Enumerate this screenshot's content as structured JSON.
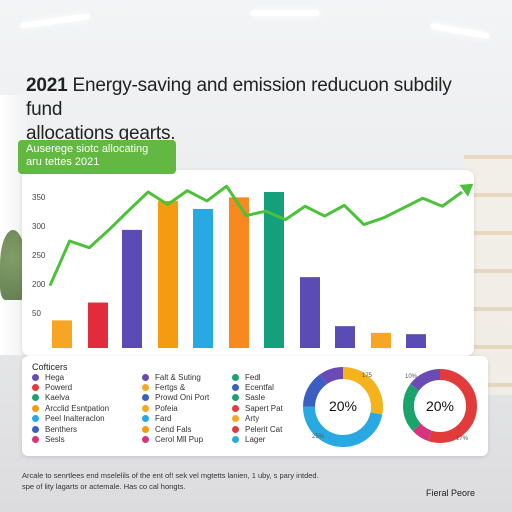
{
  "title": {
    "year": "2021",
    "rest_line1": " Energy-saving and emission reducuon subdily fund",
    "line2": "allocations gearts."
  },
  "tag": {
    "line1": "Auserege siotc allocating",
    "line2": "aru tettes 2021"
  },
  "chart_data": {
    "type": "bar",
    "y_ticks": [
      "350",
      "300",
      "250",
      "200",
      "50"
    ],
    "ylim": [
      0,
      350
    ],
    "values": [
      62,
      102,
      265,
      330,
      312,
      338,
      350,
      159,
      49,
      34,
      31
    ],
    "series": [
      {
        "type": "line",
        "values": [
          140,
          240,
          225,
          265,
          308,
          350,
          322,
          353,
          330,
          363,
          297,
          307,
          288,
          318,
          296,
          320,
          277,
          292,
          314,
          336,
          318,
          350
        ]
      }
    ],
    "colors": [
      "#f6a623",
      "#e02c3c",
      "#5b4bb5",
      "#f39c12",
      "#29a9e1",
      "#f7891f",
      "#13a07a",
      "#5b4bb5",
      "#5b4bb5",
      "#f6a623",
      "#5b4bb5"
    ],
    "line_color": "#4cc13a",
    "grid": false
  },
  "legend": {
    "heading": "Cofticers",
    "columns": [
      [
        {
          "label": "Hega",
          "color": "#6a4bb5"
        },
        {
          "label": "Powerd",
          "color": "#e23b3b"
        },
        {
          "label": "Kaelva",
          "color": "#1aa36b"
        },
        {
          "label": "Arcclid Esntpation",
          "color": "#f39c12"
        },
        {
          "label": "Peel Inalteraclon",
          "color": "#29a9e1"
        },
        {
          "label": "Benthers",
          "color": "#3b5fc0"
        },
        {
          "label": "Sesls",
          "color": "#d4357e"
        }
      ],
      [
        {
          "label": "Falt & Suting",
          "color": "#6a4bb5"
        },
        {
          "label": "Fertgs &",
          "color": "#f6a623"
        },
        {
          "label": "Prowd Oni Port",
          "color": "#3b5fc0"
        },
        {
          "label": "Pofeia",
          "color": "#f6a623"
        },
        {
          "label": "Fard",
          "color": "#29a9e1"
        },
        {
          "label": "Cend Fals",
          "color": "#f39c12"
        },
        {
          "label": "Cerol Mll Pup",
          "color": "#d4357e"
        }
      ],
      [
        {
          "label": "Fedl",
          "color": "#1aa36b"
        },
        {
          "label": "Ecentfal",
          "color": "#3b5fc0"
        },
        {
          "label": "Sasle",
          "color": "#1aa36b"
        },
        {
          "label": "Sapert Pat",
          "color": "#e23b3b"
        },
        {
          "label": "Arty",
          "color": "#f6a623"
        },
        {
          "label": "Pelerit Cat",
          "color": "#e23b3b"
        },
        {
          "label": "Lager",
          "color": "#29a9e1"
        }
      ]
    ]
  },
  "donuts": [
    {
      "center": "20%",
      "note_top": "175",
      "note_bottom": "25%",
      "segments": [
        {
          "value": 28,
          "color": "#f6b21b"
        },
        {
          "value": 47,
          "color": "#29a9e1"
        },
        {
          "value": 15,
          "color": "#3b5fc0"
        },
        {
          "value": 10,
          "color": "#6a4bb5"
        }
      ]
    },
    {
      "center": "20%",
      "note_top": "10%",
      "note_bottom": "17%",
      "segments": [
        {
          "value": 55,
          "color": "#e23b3b"
        },
        {
          "value": 8,
          "color": "#d4357e"
        },
        {
          "value": 22,
          "color": "#1aa36b"
        },
        {
          "value": 15,
          "color": "#6a4bb5"
        }
      ]
    }
  ],
  "footnote": {
    "line1": "Arcale to senrtlees end mselelils of the ent of! sek vel mgtetts lanien, 1 uby, s pary intded.",
    "line2": "spe of lity lagarts or actemale. Has co cal hongts."
  },
  "signature": "Fieral Peore"
}
